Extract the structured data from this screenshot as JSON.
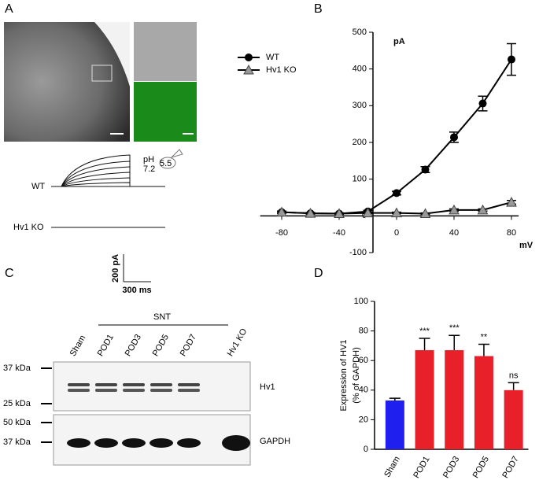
{
  "panels": {
    "a": {
      "label": "A",
      "traces": [
        "WT",
        "Hv1 KO"
      ],
      "ph_label": "pH",
      "ph_values": [
        "5.5",
        "7.2"
      ],
      "scale_bar": [
        "200 pA",
        "300 ms"
      ]
    },
    "b": {
      "label": "B"
    },
    "c": {
      "label": "C",
      "group": "SNT",
      "lanes": [
        "Sham",
        "POD1",
        "POD3",
        "POD5",
        "POD7",
        "Hv1 KO"
      ],
      "markers": [
        "37 kDa",
        "25 kDa",
        "50 kDa",
        "37 kDa"
      ],
      "bands": [
        "Hv1",
        "GAPDH"
      ]
    },
    "d": {
      "label": "D"
    }
  },
  "chart_data": [
    {
      "type": "line",
      "xlabel": "mV",
      "ylabel": "pA",
      "x": [
        -80,
        -60,
        -40,
        -20,
        0,
        20,
        40,
        60,
        80
      ],
      "series": [
        {
          "name": "WT",
          "color": "#000000",
          "marker": "circle",
          "values": [
            10,
            7,
            6,
            12,
            62,
            126,
            214,
            306,
            426
          ],
          "errors": [
            3,
            2,
            2,
            3,
            5,
            8,
            14,
            20,
            43
          ]
        },
        {
          "name": "Hv1 KO",
          "color": "#999999",
          "marker": "triangle",
          "values": [
            10,
            7,
            6,
            8,
            8,
            6,
            16,
            16,
            37
          ],
          "errors": [
            2,
            2,
            2,
            2,
            2,
            2,
            3,
            3,
            5
          ]
        }
      ],
      "xlim": [
        -95,
        85
      ],
      "ylim": [
        -100,
        500
      ],
      "xticks": [
        -80,
        -40,
        0,
        40,
        80
      ],
      "yticks": [
        -100,
        0,
        100,
        200,
        300,
        400,
        500
      ],
      "legend": "left"
    },
    {
      "type": "bar",
      "ylabel": [
        "Expression of HV1",
        "(% of GAPDH)"
      ],
      "categories": [
        "Sham",
        "POD1",
        "POD3",
        "POD5",
        "POD7"
      ],
      "values": [
        33,
        67,
        67,
        63,
        40
      ],
      "errors": [
        1.5,
        8,
        10,
        8,
        5
      ],
      "colors": [
        "#1f1fef",
        "#e8202a",
        "#e8202a",
        "#e8202a",
        "#e8202a"
      ],
      "significance": [
        null,
        "***",
        "***",
        "**",
        "ns"
      ],
      "ylim": [
        0,
        100
      ],
      "yticks": [
        0,
        20,
        40,
        60,
        80,
        100
      ]
    }
  ]
}
